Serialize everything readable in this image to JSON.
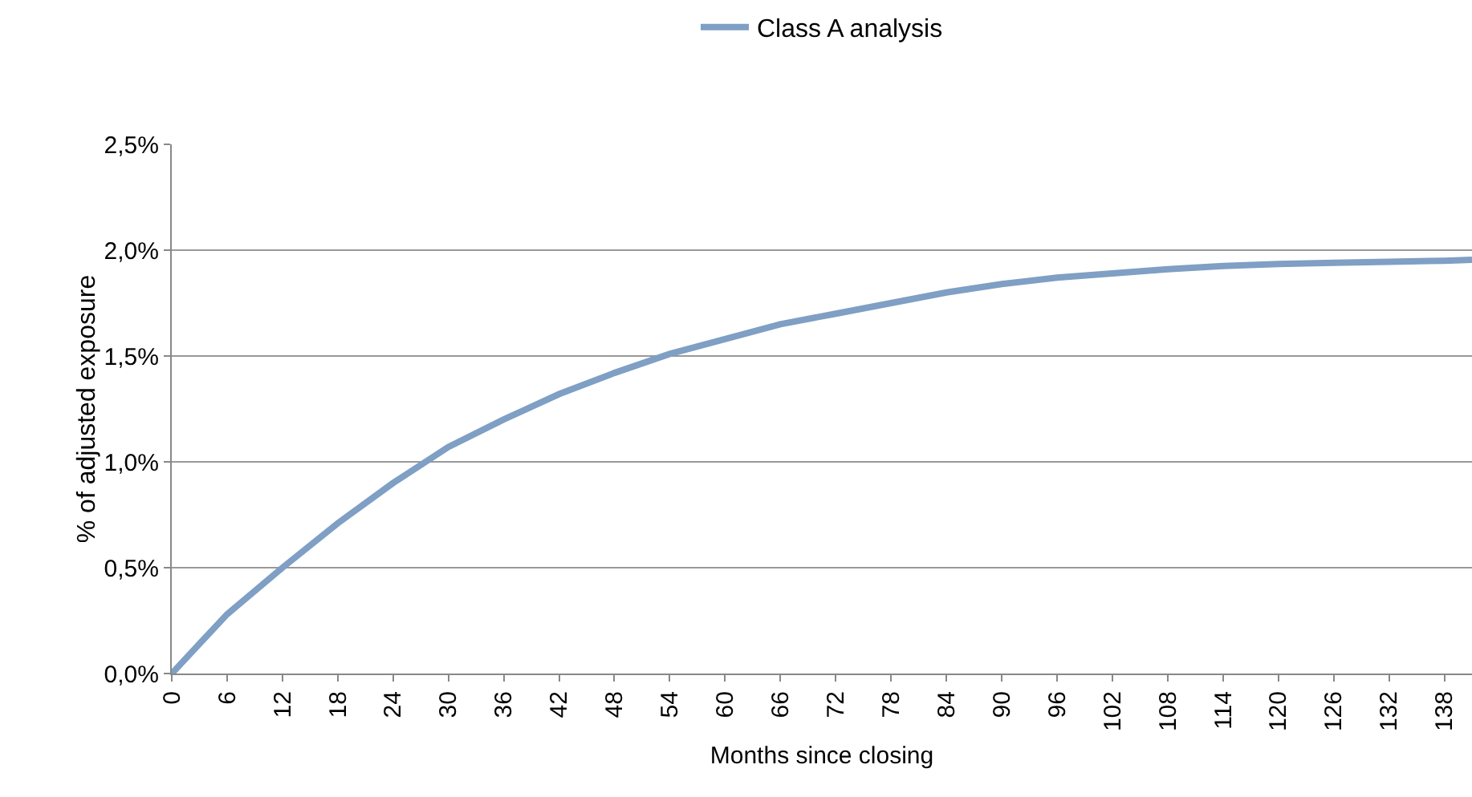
{
  "chart_data": {
    "type": "line",
    "xlabel": "Months since closing",
    "ylabel": "% of adjusted exposure",
    "x": [
      0,
      6,
      12,
      18,
      24,
      30,
      36,
      42,
      48,
      54,
      60,
      66,
      72,
      78,
      84,
      90,
      96,
      102,
      108,
      114,
      120,
      126,
      132,
      138,
      141
    ],
    "series": [
      {
        "name": "Class A analysis",
        "color": "#7f9fc4",
        "values": [
          0,
          0.28,
          0.5,
          0.71,
          0.9,
          1.07,
          1.2,
          1.32,
          1.42,
          1.51,
          1.58,
          1.65,
          1.7,
          1.75,
          1.8,
          1.84,
          1.87,
          1.89,
          1.91,
          1.925,
          1.935,
          1.94,
          1.945,
          1.95,
          1.955
        ]
      }
    ],
    "xlim": [
      0,
      141
    ],
    "xticks": [
      0,
      6,
      12,
      18,
      24,
      30,
      36,
      42,
      48,
      54,
      60,
      66,
      72,
      78,
      84,
      90,
      96,
      102,
      108,
      114,
      120,
      126,
      132,
      138
    ],
    "ylim": [
      0,
      2.5
    ],
    "yticks": [
      {
        "value": 0,
        "label": "0,0%"
      },
      {
        "value": 0.5,
        "label": "0,5%"
      },
      {
        "value": 1,
        "label": "1,0%"
      },
      {
        "value": 1.5,
        "label": "1,5%"
      },
      {
        "value": 2,
        "label": "2,0%"
      },
      {
        "value": 2.5,
        "label": "2,5%"
      }
    ],
    "grid": "y",
    "legend": "top",
    "marker": "none",
    "line_style": "solid"
  }
}
